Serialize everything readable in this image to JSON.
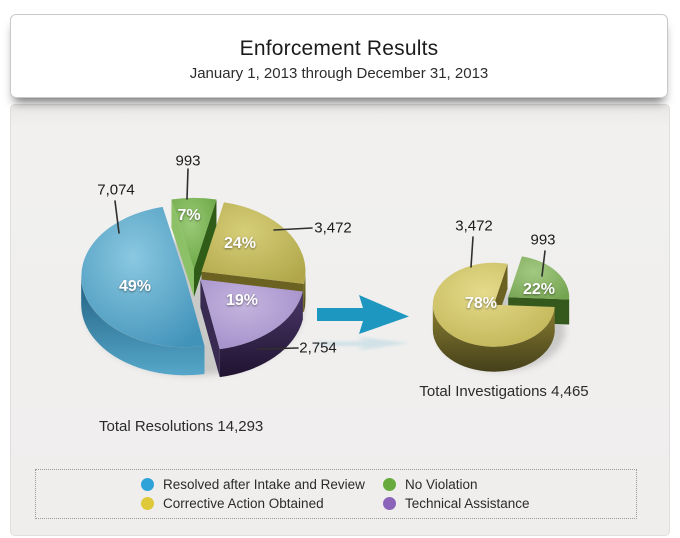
{
  "header": {
    "title": "Enforcement Results",
    "subtitle": "January 1, 2013 through December 31, 2013"
  },
  "chart_data": [
    {
      "type": "pie",
      "style": "3d-exploded",
      "title": "Total Resolutions 14,293",
      "total": 14293,
      "legend_position": "bottom",
      "slices": [
        {
          "label": "Resolved after Intake and Review",
          "value": 7074,
          "value_label": "7,074",
          "pct": 49,
          "pct_label": "49%",
          "color_key": "blue"
        },
        {
          "label": "No Violation",
          "value": 993,
          "value_label": "993",
          "pct": 7,
          "pct_label": "7%",
          "color_key": "green"
        },
        {
          "label": "Corrective Action Obtained",
          "value": 3472,
          "value_label": "3,472",
          "pct": 24,
          "pct_label": "24%",
          "color_key": "gold"
        },
        {
          "label": "Technical Assistance",
          "value": 2754,
          "value_label": "2,754",
          "pct": 19,
          "pct_label": "19%",
          "color_key": "purple"
        }
      ]
    },
    {
      "type": "pie",
      "style": "3d-exploded",
      "title": "Total Investigations 4,465",
      "total": 4465,
      "legend_position": "bottom",
      "slices": [
        {
          "label": "Corrective Action Obtained",
          "value": 3472,
          "value_label": "3,472",
          "pct": 78,
          "pct_label": "78%",
          "color_key": "gold2"
        },
        {
          "label": "No Violation",
          "value": 993,
          "value_label": "993",
          "pct": 22,
          "pct_label": "22%",
          "color_key": "green2"
        }
      ]
    }
  ],
  "legend": {
    "items": [
      {
        "label": "Resolved after Intake and Review",
        "color": "#2da3d9"
      },
      {
        "label": "No Violation",
        "color": "#67ab3e"
      },
      {
        "label": "Corrective Action Obtained",
        "color": "#ddc93a"
      },
      {
        "label": "Technical Assistance",
        "color": "#8b64b9"
      }
    ]
  },
  "colors": {
    "arrow": "#1e97c0",
    "panel_bg": "#efeeed",
    "leader_line": "#2f2f2f"
  },
  "palette": {
    "blue": {
      "hi": "#8ac8e0",
      "base": "#4293ba",
      "wallTop": "#215e80",
      "wallBot": "#55a7c9",
      "cutL": "#549fc1",
      "cutD": "#1b4f6e"
    },
    "green": {
      "hi": "#9aca77",
      "base": "#67a441",
      "wallTop": "#41771f",
      "wallBot": "#2f5c17",
      "cutL": "#8cc167",
      "cutD": "#2f5c17"
    },
    "gold": {
      "hi": "#d6cd78",
      "base": "#b1a74a",
      "wallTop": "#857b2e",
      "wallBot": "#4e481b",
      "cutL": "#c6bc64",
      "cutD": "#6b6222"
    },
    "purple": {
      "hi": "#c4b4de",
      "base": "#a28dc9",
      "wallTop": "#4a3869",
      "wallBot": "#201330",
      "cutL": "#b5a4d4",
      "cutD": "#382a50"
    },
    "gold2": {
      "hi": "#e4da8a",
      "base": "#c1b456",
      "wallTop": "#8a7f31",
      "wallBot": "#45401a",
      "cutL": "#d5ca6e",
      "cutD": "#6b6222"
    },
    "green2": {
      "hi": "#a3c983",
      "base": "#75a450",
      "wallTop": "#4a7a2b",
      "wallBot": "#35591d",
      "cutL": "#96bf74",
      "cutD": "#35591d"
    }
  }
}
